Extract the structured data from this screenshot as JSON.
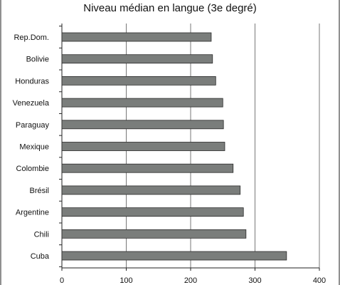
{
  "chart_data": {
    "type": "bar",
    "orientation": "horizontal",
    "title": "Niveau médian en langue (3e degré)",
    "xlabel": "",
    "ylabel": "",
    "categories": [
      "Rep.Dom.",
      "Bolivie",
      "Honduras",
      "Venezuela",
      "Paraguay",
      "Mexique",
      "Colombie",
      "Brésil",
      "Argentine",
      "Chili",
      "Cuba"
    ],
    "values": [
      232,
      234,
      239,
      250,
      251,
      253,
      266,
      277,
      282,
      286,
      349
    ],
    "xlim": [
      0,
      400
    ],
    "xticks": [
      "0",
      "100",
      "200",
      "300",
      "400"
    ],
    "grid": "vertical",
    "legend": "none",
    "bar_color": "#7a7d7b",
    "bar_edge_color": "#2a2a2a"
  }
}
